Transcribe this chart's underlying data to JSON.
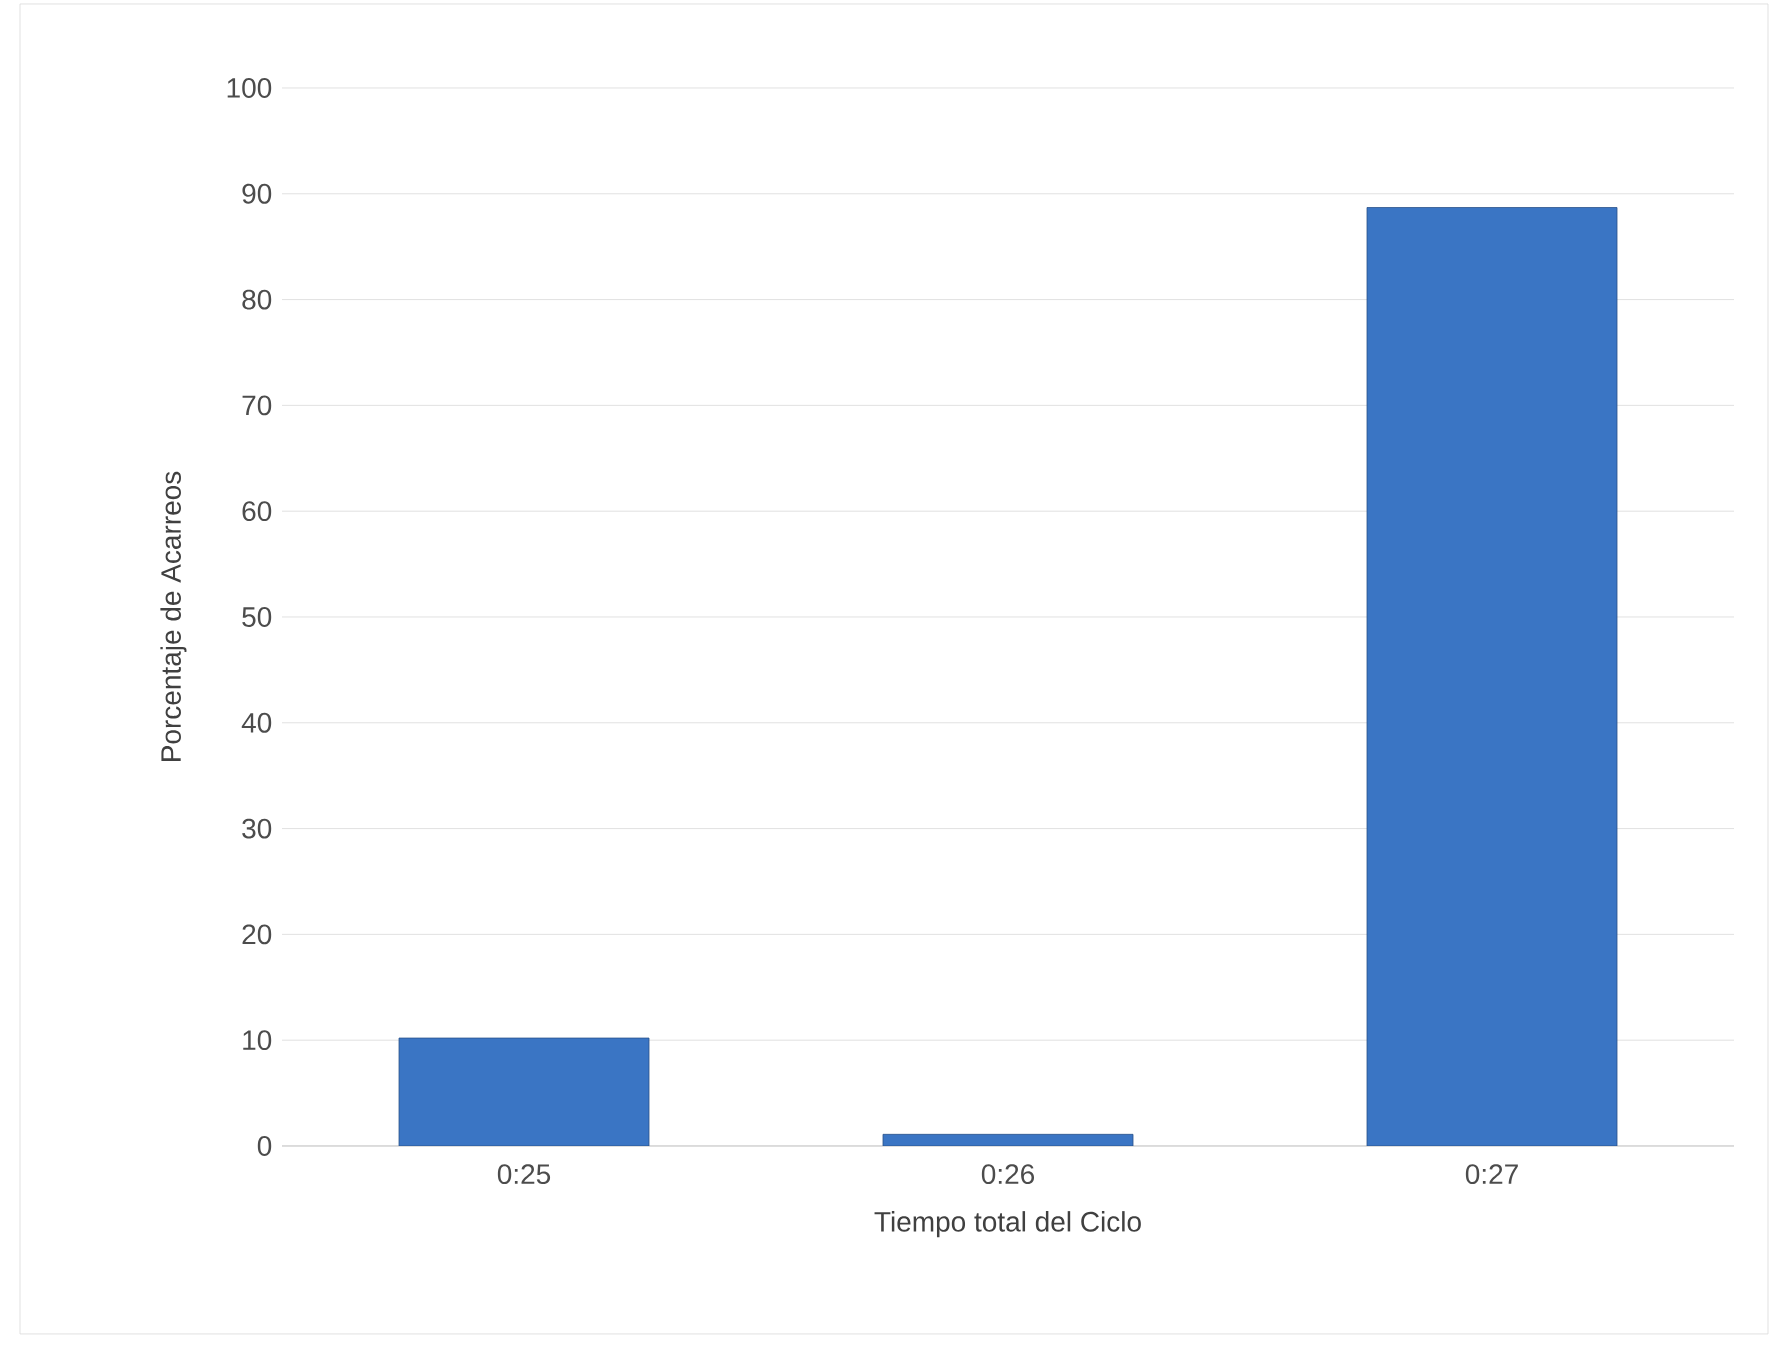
{
  "chart_data": {
    "type": "bar",
    "xlabel": "Tiempo total del Ciclo",
    "ylabel": "Porcentaje de Acarreos",
    "categories": [
      "0:25",
      "0:26",
      "0:27"
    ],
    "values": [
      10.2,
      1.1,
      88.7
    ],
    "color": "#3a75c4",
    "ylim": [
      0,
      100
    ],
    "yticks": [
      0,
      10,
      20,
      30,
      40,
      50,
      60,
      70,
      80,
      90,
      100
    ],
    "grid": "y"
  }
}
